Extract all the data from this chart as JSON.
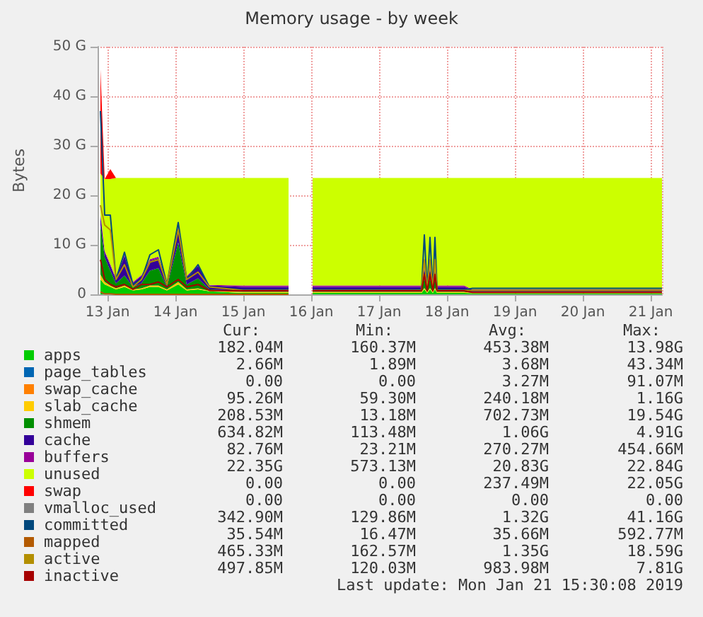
{
  "chart_data": {
    "type": "area",
    "title": "Memory usage - by week",
    "ylabel": "Bytes",
    "stacked": true,
    "grid": true,
    "legend": "bottom left",
    "marker": "none",
    "x": [
      "2019-01-12T21:30",
      "2019-01-12T23:00",
      "2019-01-13T01:00",
      "2019-01-13T03:00",
      "2019-01-13T06:00",
      "2019-01-13T09:00",
      "2019-01-13T12:00",
      "2019-01-13T15:00",
      "2019-01-13T18:00",
      "2019-01-13T21:00",
      "2019-01-14T01:00",
      "2019-01-14T04:00",
      "2019-01-14T08:00",
      "2019-01-14T12:00",
      "2019-01-15T00:00",
      "2019-01-15T16:00",
      "2019-01-15T20:00",
      "2019-01-16T00:30",
      "2019-01-16T12:00",
      "2019-01-17T12:00",
      "2019-01-17T15:00",
      "2019-01-17T16:00",
      "2019-01-17T17:00",
      "2019-01-17T18:00",
      "2019-01-17T19:00",
      "2019-01-17T19:45",
      "2019-01-17T20:30",
      "2019-01-18T06:00",
      "2019-01-18T09:00",
      "2019-01-19T12:00",
      "2019-01-21T04:00"
    ],
    "series": [
      {
        "name": "apps",
        "color": "#00cc00",
        "values": [
          3,
          2,
          1.5,
          1,
          1.5,
          0.8,
          1,
          1.5,
          1.5,
          0.8,
          2,
          0.8,
          1,
          0.6,
          0.3,
          0.3,
          null,
          0.3,
          0.3,
          0.3,
          0.3,
          1,
          0.3,
          1,
          0.3,
          1,
          0.3,
          0.3,
          0.2,
          0.2,
          0.2
        ]
      },
      {
        "name": "page_tables",
        "color": "#0066b3",
        "values": [
          null,
          null,
          null,
          null,
          null,
          null,
          null,
          null,
          null,
          null,
          null,
          null,
          null,
          null,
          null,
          null,
          null,
          null,
          null,
          null,
          null,
          null,
          null,
          null,
          null,
          null,
          null,
          null,
          null,
          null,
          null
        ]
      },
      {
        "name": "swap_cache",
        "color": "#ff8000",
        "values": [
          null,
          null,
          null,
          null,
          null,
          null,
          null,
          null,
          null,
          null,
          null,
          null,
          null,
          null,
          null,
          null,
          null,
          null,
          null,
          null,
          null,
          null,
          null,
          null,
          null,
          null,
          null,
          null,
          null,
          null,
          null
        ]
      },
      {
        "name": "slab_cache",
        "color": "#ffcc00",
        "values": [
          1,
          0.5,
          0.3,
          0.2,
          0.3,
          0.2,
          0.2,
          0.3,
          0.3,
          0.2,
          0.5,
          0.2,
          0.2,
          0.1,
          0.2,
          0.2,
          null,
          0.2,
          0.2,
          0.2,
          0.2,
          0.3,
          0.2,
          0.3,
          0.2,
          0.3,
          0.2,
          0.2,
          0.1,
          0.1,
          0.1
        ]
      },
      {
        "name": "shmem",
        "color": "#008f00",
        "values": [
          10,
          5,
          3,
          1,
          2,
          0.5,
          1,
          3,
          3.5,
          0.5,
          8,
          1,
          2,
          0.3,
          0.2,
          0.2,
          null,
          0.2,
          0.2,
          0.2,
          0.2,
          2,
          0.2,
          2,
          0.2,
          2,
          0.2,
          0.2,
          0.2,
          0.2,
          0.2
        ]
      },
      {
        "name": "cache",
        "color": "#330099",
        "values": [
          2,
          1,
          1,
          0.8,
          4,
          0.8,
          1.5,
          2,
          2,
          1,
          3,
          1.5,
          2.5,
          0.8,
          0.8,
          0.8,
          null,
          0.8,
          0.8,
          0.8,
          0.8,
          2,
          0.8,
          2,
          0.8,
          2,
          0.8,
          0.8,
          0.4,
          0.4,
          0.4
        ]
      },
      {
        "name": "buffers",
        "color": "#990099",
        "values": [
          0.4,
          0.3,
          0.3,
          0.2,
          0.3,
          0.2,
          0.2,
          0.3,
          0.3,
          0.2,
          0.3,
          0.2,
          0.3,
          0.1,
          0.3,
          0.3,
          null,
          0.3,
          0.3,
          0.3,
          0.3,
          0.3,
          0.3,
          0.3,
          0.3,
          0.3,
          0.3,
          0.3,
          0.1,
          0.1,
          0.1
        ]
      },
      {
        "name": "unused",
        "color": "#ccff00",
        "values": [
          8,
          14.5,
          17.2,
          20.3,
          15.4,
          21,
          19.6,
          16.4,
          15.9,
          20.8,
          9.7,
          19.8,
          17.5,
          21.6,
          21.7,
          21.7,
          null,
          21.7,
          21.7,
          21.7,
          21.7,
          17.9,
          21.7,
          17.9,
          21.7,
          17.9,
          21.7,
          21.7,
          22.5,
          22.5,
          22.5
        ]
      },
      {
        "name": "swap",
        "color": "#ff0000",
        "values": [
          21,
          0,
          2,
          0,
          0,
          0,
          0,
          0,
          0,
          0,
          0,
          0,
          0,
          0,
          0,
          0,
          null,
          null,
          null,
          null,
          null,
          null,
          null,
          null,
          null,
          null,
          null,
          null,
          null,
          null,
          null
        ]
      },
      {
        "name": "vmalloc_used",
        "color": "#808080",
        "type": "line",
        "values": [
          null,
          null,
          null,
          null,
          null,
          null,
          null,
          null,
          null,
          null,
          null,
          null,
          null,
          null,
          null,
          null,
          null,
          null,
          null,
          null,
          null,
          null,
          null,
          null,
          null,
          null,
          null,
          null,
          null,
          null,
          null
        ]
      },
      {
        "name": "committed",
        "color": "#00487d",
        "type": "line",
        "values": [
          37,
          16,
          16,
          3,
          8.5,
          2,
          3,
          8,
          9,
          2,
          14.5,
          3,
          6,
          1.5,
          0.9,
          0.9,
          null,
          0.9,
          0.9,
          0.9,
          1,
          12,
          1,
          11.5,
          1,
          11.5,
          1,
          0.9,
          1.2,
          1.2,
          1.2
        ]
      },
      {
        "name": "mapped",
        "color": "#b35a00",
        "type": "line",
        "values": [
          0.5,
          0.1,
          0.1,
          0,
          0,
          0,
          0,
          0,
          0,
          0,
          0,
          0,
          0,
          0,
          0,
          0,
          null,
          null,
          null,
          null,
          null,
          null,
          null,
          null,
          null,
          null,
          null,
          null,
          null,
          null,
          null
        ]
      },
      {
        "name": "active",
        "color": "#b38f00",
        "type": "line",
        "values": [
          18,
          14,
          13,
          3,
          6,
          1.5,
          3,
          6.5,
          7,
          2,
          13,
          3,
          4.5,
          1.5,
          0.8,
          0.8,
          null,
          0.8,
          0.8,
          0.8,
          0.8,
          7,
          0.8,
          7,
          0.8,
          7,
          0.8,
          0.8,
          0.8,
          0.8,
          0.8
        ]
      },
      {
        "name": "inactive",
        "color": "#a60000",
        "type": "line",
        "values": [
          7,
          3,
          2,
          1.5,
          2,
          1,
          2,
          2,
          2.5,
          1.5,
          3,
          1.5,
          2,
          0.8,
          0.7,
          0.7,
          null,
          0.7,
          0.7,
          0.7,
          0.7,
          4,
          0.7,
          4,
          0.7,
          4,
          0.7,
          0.7,
          0.4,
          0.4,
          0.4
        ]
      }
    ],
    "xlim": [
      "2019-01-12T20:30",
      "2019-01-21T04:00"
    ],
    "xticks": [
      {
        "value": "2019-01-13",
        "label": "13 Jan"
      },
      {
        "value": "2019-01-14",
        "label": "14 Jan"
      },
      {
        "value": "2019-01-15",
        "label": "15 Jan"
      },
      {
        "value": "2019-01-16",
        "label": "16 Jan"
      },
      {
        "value": "2019-01-17",
        "label": "17 Jan"
      },
      {
        "value": "2019-01-18",
        "label": "18 Jan"
      },
      {
        "value": "2019-01-19",
        "label": "19 Jan"
      },
      {
        "value": "2019-01-20",
        "label": "20 Jan"
      },
      {
        "value": "2019-01-21",
        "label": "21 Jan"
      }
    ],
    "ylim": [
      0,
      50
    ],
    "yticks": [
      0,
      {
        "value": 10,
        "label": "10 G"
      },
      {
        "value": 20,
        "label": "20 G"
      },
      {
        "value": 30,
        "label": "30 G"
      },
      {
        "value": 40,
        "label": "40 G"
      },
      {
        "value": 50,
        "label": "50 G"
      }
    ],
    "annotations": [
      "Cur:",
      "Min:",
      "Avg:",
      "Max:",
      "182.04M",
      "160.37M",
      "453.38M",
      "13.98G",
      "2.66M",
      "1.89M",
      "3.68M",
      "43.34M",
      "0.00",
      "0.00",
      "3.27M",
      "91.07M",
      "95.26M",
      "59.30M",
      "240.18M",
      "1.16G",
      "208.53M",
      "13.18M",
      "702.73M",
      "19.54G",
      "634.82M",
      "113.48M",
      "1.06G",
      "4.91G",
      "82.76M",
      "23.21M",
      "270.27M",
      "454.66M",
      "22.35G",
      "573.13M",
      "20.83G",
      "22.84G",
      "0.00",
      "0.00",
      "237.49M",
      "22.05G",
      "0.00",
      "0.00",
      "0.00",
      "0.00",
      "342.90M",
      "129.86M",
      "1.32G",
      "41.16G",
      "35.54M",
      "16.47M",
      "35.66M",
      "592.77M",
      "465.33M",
      "162.57M",
      "1.35G",
      "18.59G",
      "497.85M",
      "120.03M",
      "983.98M",
      "7.81G",
      "Last update: Mon Jan 21 15:30:08 2019"
    ]
  }
}
